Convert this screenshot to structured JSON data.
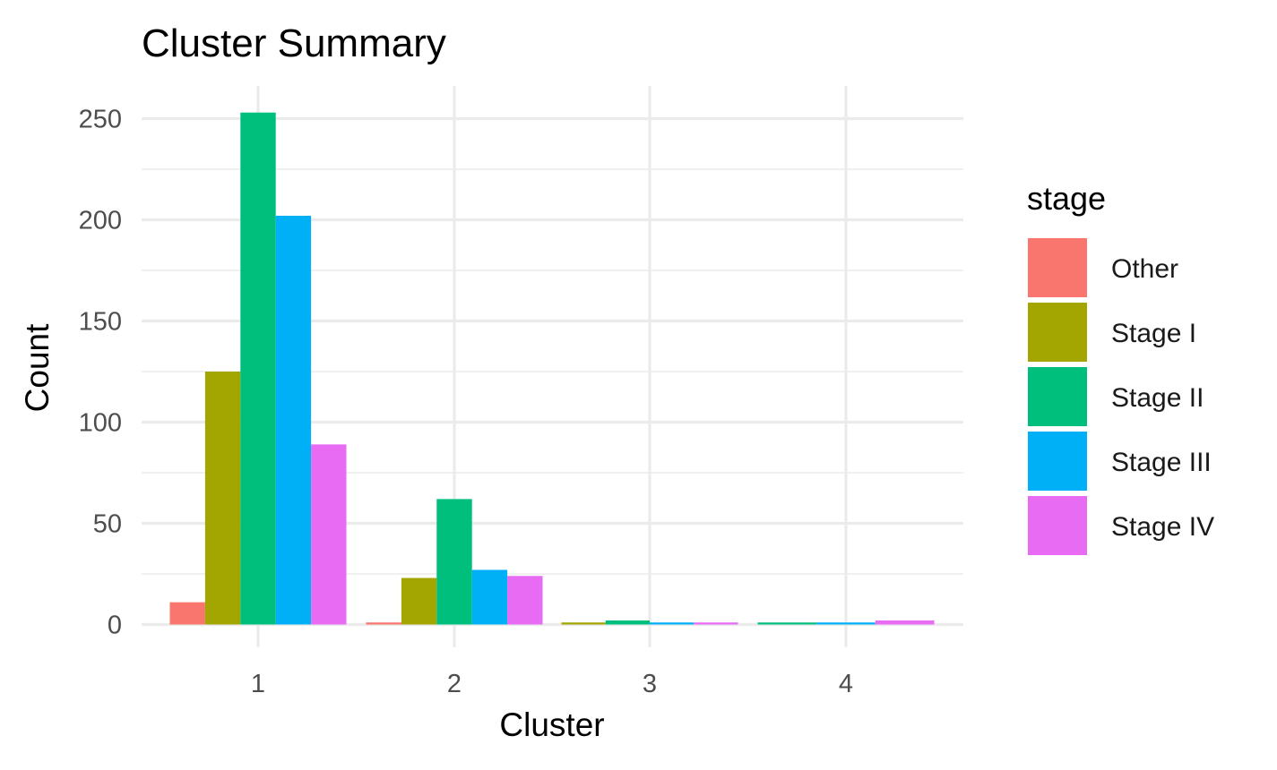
{
  "chart_data": {
    "type": "bar",
    "title": "Cluster Summary",
    "xlabel": "Cluster",
    "ylabel": "Count",
    "categories": [
      "1",
      "2",
      "3",
      "4"
    ],
    "ylim": [
      0,
      265
    ],
    "yticks": [
      0,
      50,
      100,
      150,
      200,
      250
    ],
    "ytick_labels": [
      "0",
      "50",
      "100",
      "150",
      "200",
      "250"
    ],
    "grid": true,
    "legend_title": "stage",
    "legend_position": "right",
    "series": [
      {
        "name": "Other",
        "color": "#F8766D",
        "values": [
          11,
          1,
          null,
          null
        ]
      },
      {
        "name": "Stage I",
        "color": "#A3A500",
        "values": [
          125,
          23,
          1,
          null
        ]
      },
      {
        "name": "Stage II",
        "color": "#00BF7D",
        "values": [
          253,
          62,
          2,
          1
        ]
      },
      {
        "name": "Stage III",
        "color": "#00B0F6",
        "values": [
          202,
          27,
          1,
          1
        ]
      },
      {
        "name": "Stage IV",
        "color": "#E76BF3",
        "values": [
          89,
          24,
          1,
          2
        ]
      }
    ]
  }
}
